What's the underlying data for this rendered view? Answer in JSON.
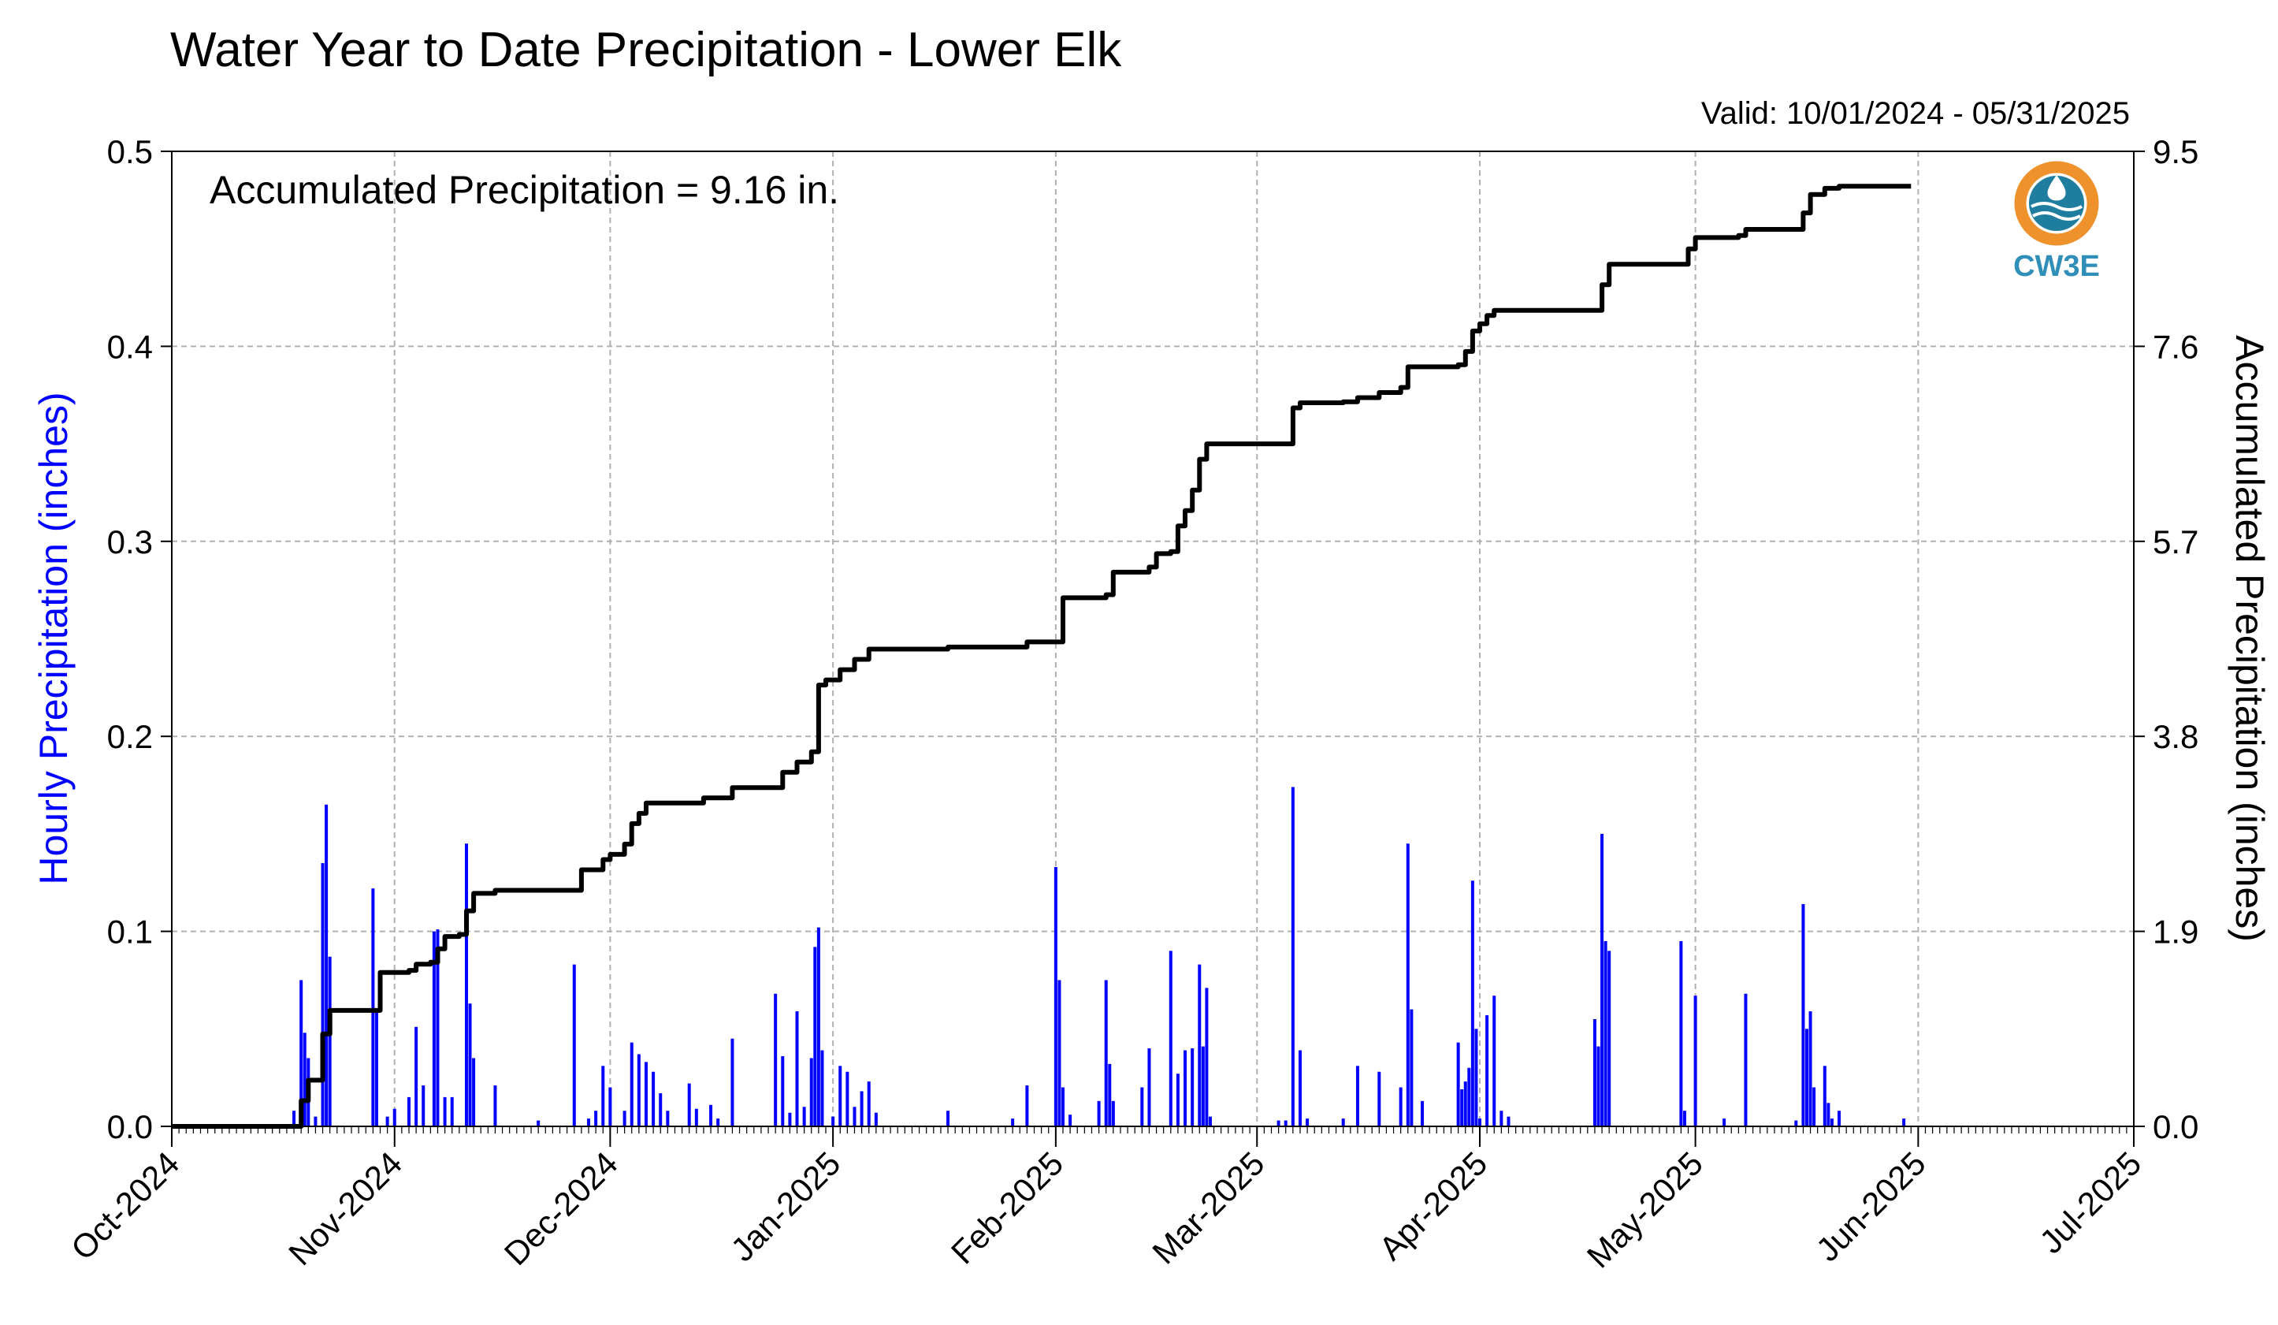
{
  "header": {
    "title": "Water Year to Date Precipitation - Lower Elk",
    "valid": "Valid: 10/01/2024 - 05/31/2025"
  },
  "annotation": "Accumulated Precipitation = 9.16 in.",
  "logo": {
    "text": "CW3E",
    "colors": {
      "ring": "#f0922c",
      "water": "#1f7ea0"
    }
  },
  "colors": {
    "bars": "#0000ff",
    "line": "#000000",
    "left_axis_label": "#0000ff",
    "grid": "#b0b0b0"
  },
  "chart_data": {
    "type": "bar+line",
    "title": "Water Year to Date Precipitation - Lower Elk",
    "xlabel": "",
    "ylabel_left": "Hourly Precipitation (inches)",
    "ylabel_right": "Accumulated Precipitation (inches)",
    "grid": true,
    "x_range": [
      "2024-10-01",
      "2025-07-01"
    ],
    "x_ticks": [
      "Oct-2024",
      "Nov-2024",
      "Dec-2024",
      "Jan-2025",
      "Feb-2025",
      "Mar-2025",
      "Apr-2025",
      "May-2025",
      "Jun-2025",
      "Jul-2025"
    ],
    "y_left": {
      "range": [
        0,
        0.5
      ],
      "ticks": [
        "0.0",
        "0.1",
        "0.2",
        "0.3",
        "0.4",
        "0.5"
      ]
    },
    "y_right": {
      "range": [
        0,
        9.5
      ],
      "ticks": [
        "0.0",
        "1.9",
        "3.8",
        "5.7",
        "7.6",
        "9.5"
      ]
    },
    "series": [
      {
        "name": "Hourly Precipitation",
        "kind": "bar",
        "points": [
          [
            "2024-10-18",
            0.008
          ],
          [
            "2024-10-19",
            0.075
          ],
          [
            "2024-10-19.5",
            0.048
          ],
          [
            "2024-10-20",
            0.035
          ],
          [
            "2024-10-21",
            0.005
          ],
          [
            "2024-10-22",
            0.135
          ],
          [
            "2024-10-22.5",
            0.165
          ],
          [
            "2024-10-23",
            0.087
          ],
          [
            "2024-10-29",
            0.122
          ],
          [
            "2024-10-29.5",
            0.06
          ],
          [
            "2024-10-31",
            0.005
          ],
          [
            "2024-11-01",
            0.009
          ],
          [
            "2024-11-03",
            0.015
          ],
          [
            "2024-11-04",
            0.051
          ],
          [
            "2024-11-05",
            0.021
          ],
          [
            "2024-11-06.5",
            0.1
          ],
          [
            "2024-11-07",
            0.101
          ],
          [
            "2024-11-08",
            0.015
          ],
          [
            "2024-11-09",
            0.015
          ],
          [
            "2024-11-11",
            0.145
          ],
          [
            "2024-11-11.5",
            0.063
          ],
          [
            "2024-11-12",
            0.035
          ],
          [
            "2024-11-15",
            0.021
          ],
          [
            "2024-11-21",
            0.003
          ],
          [
            "2024-11-26",
            0.083
          ],
          [
            "2024-11-28",
            0.004
          ],
          [
            "2024-11-29",
            0.008
          ],
          [
            "2024-11-30",
            0.031
          ],
          [
            "2024-12-01",
            0.02
          ],
          [
            "2024-12-03",
            0.008
          ],
          [
            "2024-12-04",
            0.043
          ],
          [
            "2024-12-05",
            0.037
          ],
          [
            "2024-12-06",
            0.033
          ],
          [
            "2024-12-07",
            0.028
          ],
          [
            "2024-12-08",
            0.017
          ],
          [
            "2024-12-09",
            0.008
          ],
          [
            "2024-12-12",
            0.022
          ],
          [
            "2024-12-13",
            0.009
          ],
          [
            "2024-12-15",
            0.011
          ],
          [
            "2024-12-16",
            0.004
          ],
          [
            "2024-12-18",
            0.045
          ],
          [
            "2024-12-24",
            0.068
          ],
          [
            "2024-12-25",
            0.036
          ],
          [
            "2024-12-26",
            0.007
          ],
          [
            "2024-12-27",
            0.059
          ],
          [
            "2024-12-28",
            0.01
          ],
          [
            "2024-12-29",
            0.035
          ],
          [
            "2024-12-29.5",
            0.092
          ],
          [
            "2024-12-30",
            0.102
          ],
          [
            "2024-12-30.5",
            0.039
          ],
          [
            "2025-01-01",
            0.005
          ],
          [
            "2025-01-02",
            0.031
          ],
          [
            "2025-01-03",
            0.028
          ],
          [
            "2025-01-04",
            0.01
          ],
          [
            "2025-01-05",
            0.018
          ],
          [
            "2025-01-06",
            0.023
          ],
          [
            "2025-01-07",
            0.007
          ],
          [
            "2025-01-17",
            0.008
          ],
          [
            "2025-01-26",
            0.004
          ],
          [
            "2025-01-28",
            0.021
          ],
          [
            "2025-02-01",
            0.133
          ],
          [
            "2025-02-01.5",
            0.075
          ],
          [
            "2025-02-02",
            0.02
          ],
          [
            "2025-02-03",
            0.006
          ],
          [
            "2025-02-07",
            0.013
          ],
          [
            "2025-02-08",
            0.075
          ],
          [
            "2025-02-08.5",
            0.032
          ],
          [
            "2025-02-09",
            0.013
          ],
          [
            "2025-02-13",
            0.02
          ],
          [
            "2025-02-14",
            0.04
          ],
          [
            "2025-02-17",
            0.09
          ],
          [
            "2025-02-18",
            0.027
          ],
          [
            "2025-02-19",
            0.039
          ],
          [
            "2025-02-20",
            0.04
          ],
          [
            "2025-02-21",
            0.083
          ],
          [
            "2025-02-21.5",
            0.041
          ],
          [
            "2025-02-22",
            0.071
          ],
          [
            "2025-02-22.5",
            0.005
          ],
          [
            "2025-03-04",
            0.003
          ],
          [
            "2025-03-05",
            0.003
          ],
          [
            "2025-03-06",
            0.174
          ],
          [
            "2025-03-07",
            0.039
          ],
          [
            "2025-03-08",
            0.004
          ],
          [
            "2025-03-13",
            0.004
          ],
          [
            "2025-03-15",
            0.031
          ],
          [
            "2025-03-18",
            0.028
          ],
          [
            "2025-03-21",
            0.02
          ],
          [
            "2025-03-22",
            0.145
          ],
          [
            "2025-03-22.5",
            0.06
          ],
          [
            "2025-03-24",
            0.013
          ],
          [
            "2025-03-29",
            0.043
          ],
          [
            "2025-03-29.5",
            0.019
          ],
          [
            "2025-03-30",
            0.023
          ],
          [
            "2025-03-30.5",
            0.03
          ],
          [
            "2025-03-31",
            0.126
          ],
          [
            "2025-03-31.5",
            0.05
          ],
          [
            "2025-04-01",
            0.004
          ],
          [
            "2025-04-02",
            0.057
          ],
          [
            "2025-04-03",
            0.067
          ],
          [
            "2025-04-04",
            0.008
          ],
          [
            "2025-04-05",
            0.005
          ],
          [
            "2025-04-17",
            0.055
          ],
          [
            "2025-04-17.5",
            0.041
          ],
          [
            "2025-04-18",
            0.15
          ],
          [
            "2025-04-18.5",
            0.095
          ],
          [
            "2025-04-19",
            0.09
          ],
          [
            "2025-04-29",
            0.095
          ],
          [
            "2025-04-29.5",
            0.008
          ],
          [
            "2025-05-01",
            0.067
          ],
          [
            "2025-05-05",
            0.004
          ],
          [
            "2025-05-08",
            0.068
          ],
          [
            "2025-05-15",
            0.003
          ],
          [
            "2025-05-16",
            0.114
          ],
          [
            "2025-05-16.5",
            0.05
          ],
          [
            "2025-05-17",
            0.059
          ],
          [
            "2025-05-17.5",
            0.02
          ],
          [
            "2025-05-19",
            0.031
          ],
          [
            "2025-05-19.5",
            0.012
          ],
          [
            "2025-05-20",
            0.004
          ],
          [
            "2025-05-21",
            0.008
          ],
          [
            "2025-05-30",
            0.004
          ]
        ]
      },
      {
        "name": "Accumulated Precipitation",
        "kind": "step-line",
        "points": [
          [
            "2024-10-01",
            0.0
          ],
          [
            "2024-10-18",
            0.0
          ],
          [
            "2024-10-19",
            0.25
          ],
          [
            "2024-10-20",
            0.45
          ],
          [
            "2024-10-21",
            0.45
          ],
          [
            "2024-10-22",
            0.9
          ],
          [
            "2024-10-23",
            1.13
          ],
          [
            "2024-10-29",
            1.13
          ],
          [
            "2024-10-30",
            1.5
          ],
          [
            "2024-11-03",
            1.52
          ],
          [
            "2024-11-04",
            1.58
          ],
          [
            "2024-11-06",
            1.6
          ],
          [
            "2024-11-07",
            1.73
          ],
          [
            "2024-11-08",
            1.85
          ],
          [
            "2024-11-10",
            1.87
          ],
          [
            "2024-11-11",
            2.1
          ],
          [
            "2024-11-12",
            2.27
          ],
          [
            "2024-11-15",
            2.3
          ],
          [
            "2024-11-26",
            2.3
          ],
          [
            "2024-11-27",
            2.5
          ],
          [
            "2024-11-30",
            2.6
          ],
          [
            "2024-12-01",
            2.65
          ],
          [
            "2024-12-03",
            2.75
          ],
          [
            "2024-12-04",
            2.95
          ],
          [
            "2024-12-05",
            3.05
          ],
          [
            "2024-12-06",
            3.15
          ],
          [
            "2024-12-13",
            3.15
          ],
          [
            "2024-12-14",
            3.2
          ],
          [
            "2024-12-18",
            3.3
          ],
          [
            "2024-12-24",
            3.3
          ],
          [
            "2024-12-25",
            3.45
          ],
          [
            "2024-12-27",
            3.55
          ],
          [
            "2024-12-29",
            3.65
          ],
          [
            "2024-12-30",
            4.3
          ],
          [
            "2024-12-31",
            4.35
          ],
          [
            "2025-01-01",
            4.35
          ],
          [
            "2025-01-02",
            4.45
          ],
          [
            "2025-01-04",
            4.55
          ],
          [
            "2025-01-06",
            4.65
          ],
          [
            "2025-01-17",
            4.67
          ],
          [
            "2025-01-28",
            4.72
          ],
          [
            "2025-02-01",
            4.72
          ],
          [
            "2025-02-02",
            5.15
          ],
          [
            "2025-02-08",
            5.18
          ],
          [
            "2025-02-09",
            5.4
          ],
          [
            "2025-02-14",
            5.45
          ],
          [
            "2025-02-15",
            5.58
          ],
          [
            "2025-02-17",
            5.6
          ],
          [
            "2025-02-18",
            5.85
          ],
          [
            "2025-02-19",
            6.0
          ],
          [
            "2025-02-20",
            6.2
          ],
          [
            "2025-02-21",
            6.5
          ],
          [
            "2025-02-22",
            6.65
          ],
          [
            "2025-03-05",
            6.65
          ],
          [
            "2025-03-06",
            7.0
          ],
          [
            "2025-03-07",
            7.05
          ],
          [
            "2025-03-13",
            7.06
          ],
          [
            "2025-03-15",
            7.1
          ],
          [
            "2025-03-18",
            7.15
          ],
          [
            "2025-03-21",
            7.2
          ],
          [
            "2025-03-22",
            7.4
          ],
          [
            "2025-03-29",
            7.42
          ],
          [
            "2025-03-30",
            7.55
          ],
          [
            "2025-03-31",
            7.75
          ],
          [
            "2025-04-01",
            7.82
          ],
          [
            "2025-04-02",
            7.9
          ],
          [
            "2025-04-03",
            7.95
          ],
          [
            "2025-04-17",
            7.95
          ],
          [
            "2025-04-18",
            8.2
          ],
          [
            "2025-04-19",
            8.4
          ],
          [
            "2025-04-29",
            8.4
          ],
          [
            "2025-04-30",
            8.55
          ],
          [
            "2025-05-01",
            8.66
          ],
          [
            "2025-05-07",
            8.68
          ],
          [
            "2025-05-08",
            8.74
          ],
          [
            "2025-05-15",
            8.74
          ],
          [
            "2025-05-16",
            8.9
          ],
          [
            "2025-05-17",
            9.08
          ],
          [
            "2025-05-19",
            9.14
          ],
          [
            "2025-05-21",
            9.16
          ],
          [
            "2025-05-31",
            9.16
          ]
        ]
      }
    ]
  }
}
